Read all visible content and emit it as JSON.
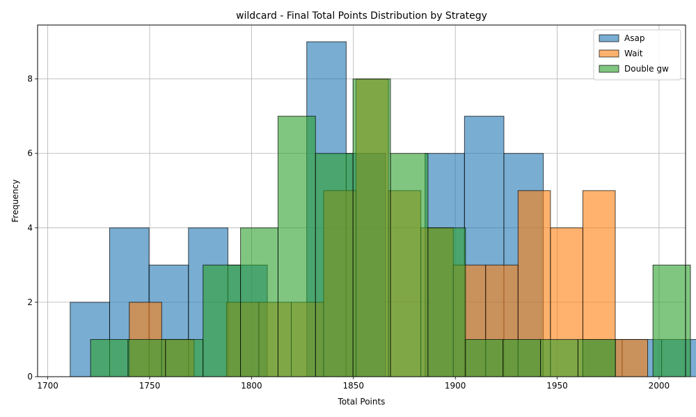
{
  "chart_data": {
    "type": "histogram",
    "title": "wildcard - Final Total Points Distribution by Strategy",
    "xlabel": "Total Points",
    "ylabel": "Frequency",
    "xlim": [
      1695,
      2013
    ],
    "ylim": [
      0,
      9.45
    ],
    "xticks": [
      1700,
      1750,
      1800,
      1850,
      1900,
      1950,
      2000
    ],
    "yticks": [
      0,
      2,
      4,
      6,
      8
    ],
    "grid": true,
    "legend_position": "top-right",
    "series": [
      {
        "name": "Asap",
        "color": "#1f77b4",
        "bin_start": 1711,
        "bin_width": 19.35,
        "counts": [
          2,
          4,
          3,
          4,
          3,
          0,
          9,
          6,
          0,
          6,
          7,
          6,
          0,
          1,
          1,
          1
        ]
      },
      {
        "name": "Wait",
        "color": "#ff7f0e",
        "bin_start": 1740,
        "bin_width": 15.9,
        "counts": [
          2,
          1,
          0,
          2,
          2,
          2,
          5,
          8,
          5,
          4,
          3,
          3,
          5,
          4,
          5,
          1
        ]
      },
      {
        "name": "Double gw",
        "color": "#2ca02c",
        "bin_start": 1721,
        "bin_width": 18.4,
        "counts": [
          1,
          1,
          1,
          3,
          4,
          7,
          6,
          8,
          6,
          4,
          1,
          1,
          1,
          1,
          0,
          3
        ]
      }
    ]
  }
}
